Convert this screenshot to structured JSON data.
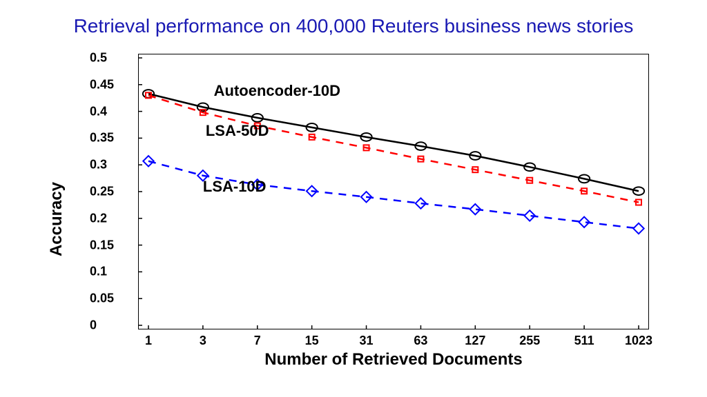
{
  "title": "Retrieval performance on 400,000 Reuters business news stories",
  "title_color": "#1a1ab3",
  "title_fontsize": 28,
  "chart": {
    "type": "line",
    "xlabel": "Number of Retrieved Documents",
    "ylabel": "Accuracy",
    "label_fontsize": 24,
    "label_fontweight": "bold",
    "tick_fontsize": 18,
    "tick_fontweight": "bold",
    "background_color": "#ffffff",
    "axis_color": "#000000",
    "x_categories": [
      "1",
      "3",
      "7",
      "15",
      "31",
      "63",
      "127",
      "255",
      "511",
      "1023"
    ],
    "y_ticks": [
      0,
      0.05,
      0.1,
      0.15,
      0.2,
      0.25,
      0.3,
      0.35,
      0.4,
      0.45,
      0.5
    ],
    "ylim": [
      0,
      0.5
    ],
    "series": [
      {
        "name": "Autoencoder-10D",
        "label_pos": {
          "x_idx": 1.2,
          "y": 0.44
        },
        "values": [
          0.433,
          0.408,
          0.388,
          0.37,
          0.352,
          0.335,
          0.317,
          0.296,
          0.274,
          0.251
        ],
        "color": "#000000",
        "line_style": "solid",
        "line_width": 2.5,
        "marker": "circle",
        "marker_size": 9,
        "marker_fill": "none",
        "marker_stroke": "#000000",
        "marker_stroke_width": 2
      },
      {
        "name": "LSA-50D",
        "label_pos": {
          "x_idx": 1.05,
          "y": 0.365
        },
        "values": [
          0.43,
          0.398,
          0.373,
          0.352,
          0.332,
          0.311,
          0.291,
          0.271,
          0.251,
          0.23
        ],
        "color": "#ff0000",
        "line_style": "dashed",
        "line_width": 2.5,
        "marker": "square",
        "marker_size": 8,
        "marker_fill": "none",
        "marker_stroke": "#ff0000",
        "marker_stroke_width": 2
      },
      {
        "name": "LSA-10D",
        "label_pos": {
          "x_idx": 1.0,
          "y": 0.26
        },
        "values": [
          0.307,
          0.28,
          0.263,
          0.251,
          0.24,
          0.228,
          0.217,
          0.205,
          0.193,
          0.181
        ],
        "color": "#0000ff",
        "line_style": "dashed",
        "line_width": 2.5,
        "marker": "diamond",
        "marker_size": 10,
        "marker_fill": "none",
        "marker_stroke": "#0000ff",
        "marker_stroke_width": 2
      }
    ]
  }
}
